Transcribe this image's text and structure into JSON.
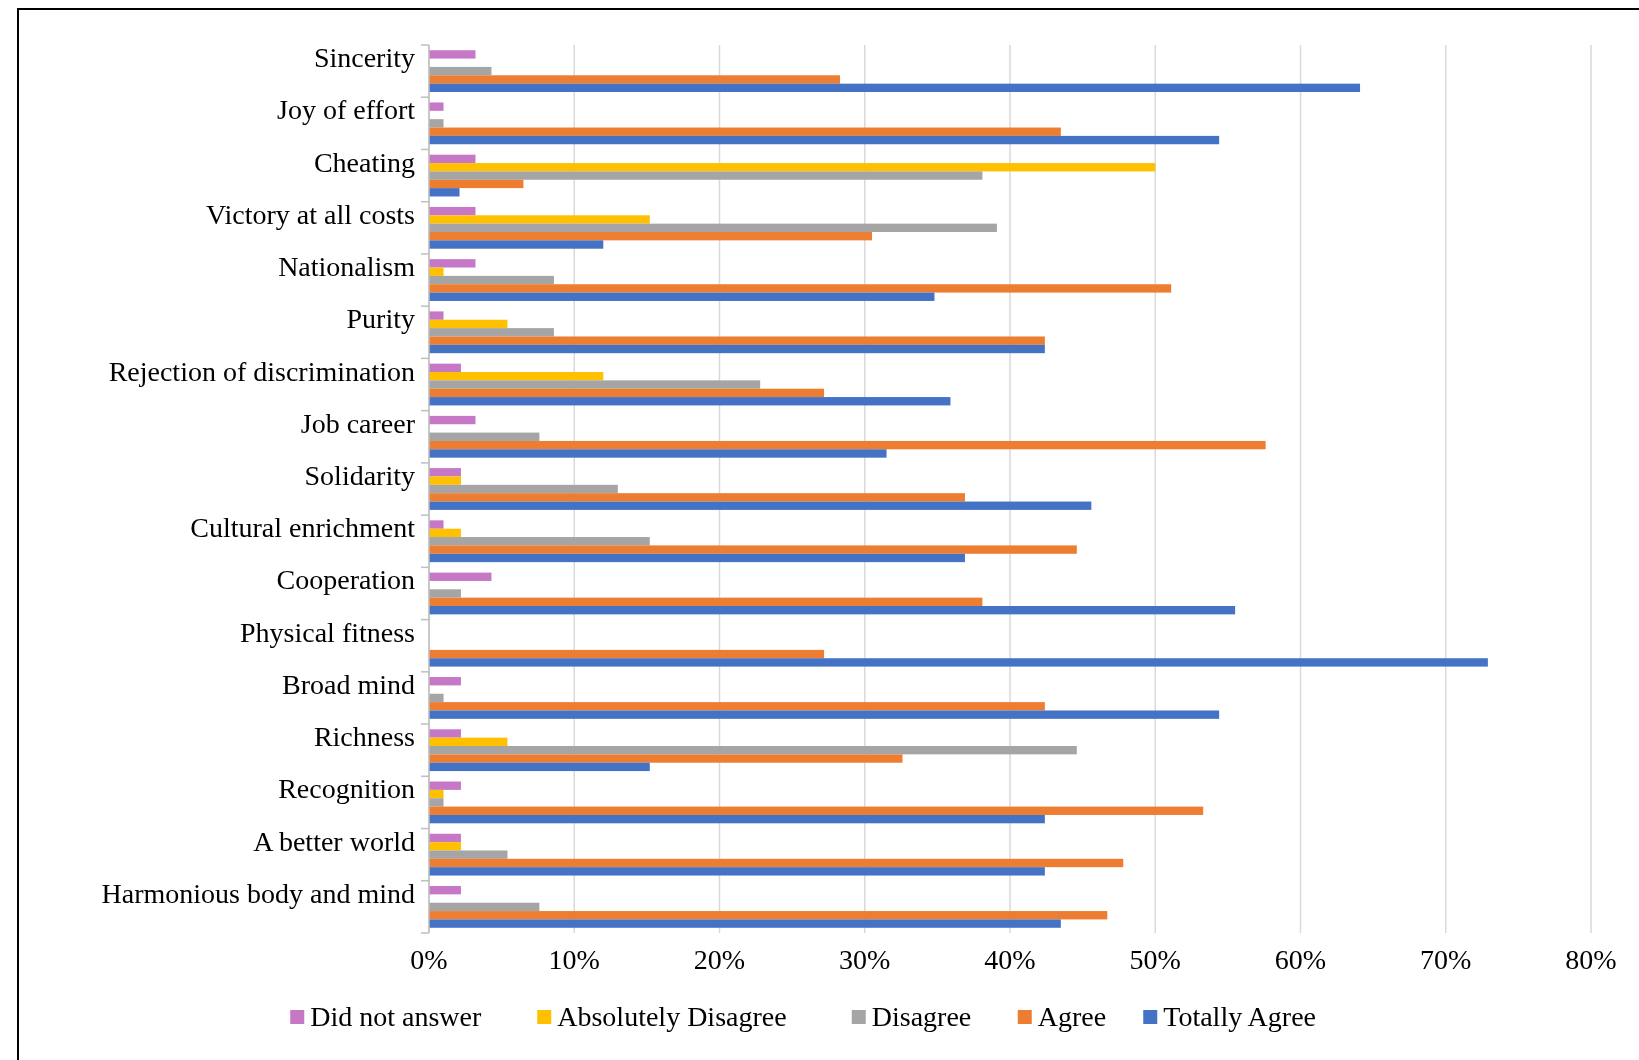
{
  "chart_data": {
    "type": "bar",
    "orientation": "horizontal",
    "categories": [
      "Sincerity",
      "Joy of effort",
      "Cheating",
      "Victory at all costs",
      "Nationalism",
      "Purity",
      "Rejection of discrimination",
      "Job career",
      "Solidarity",
      "Cultural enrichment",
      "Cooperation",
      "Physical fitness",
      "Broad mind",
      "Richness",
      "Recognition",
      "A better world",
      "Harmonious body and mind"
    ],
    "series": [
      {
        "name": "Did not answer",
        "color": "#c678c6",
        "values": [
          3.2,
          1.0,
          3.2,
          3.2,
          3.2,
          1.0,
          2.2,
          3.2,
          2.2,
          1.0,
          4.3,
          0,
          2.2,
          2.2,
          2.2,
          2.2,
          2.2
        ]
      },
      {
        "name": "Absolutely Disagree",
        "color": "#ffc000",
        "values": [
          0,
          0,
          50.0,
          15.2,
          1.0,
          5.4,
          12.0,
          0,
          2.2,
          2.2,
          0,
          0,
          0,
          5.4,
          1.0,
          2.2,
          0
        ]
      },
      {
        "name": "Disagree",
        "color": "#a5a5a5",
        "values": [
          4.3,
          1.0,
          38.1,
          39.1,
          8.6,
          8.6,
          22.8,
          7.6,
          13.0,
          15.2,
          2.2,
          0,
          1.0,
          44.6,
          1.0,
          5.4,
          7.6
        ]
      },
      {
        "name": "Agree",
        "color": "#ed7d31",
        "values": [
          28.3,
          43.5,
          6.5,
          30.5,
          51.1,
          42.4,
          27.2,
          57.6,
          36.9,
          44.6,
          38.1,
          27.2,
          42.4,
          32.6,
          53.3,
          47.8,
          46.7
        ]
      },
      {
        "name": "Totally Agree",
        "color": "#4472c4",
        "values": [
          64.1,
          54.4,
          2.1,
          12.0,
          34.8,
          42.4,
          35.9,
          31.5,
          45.6,
          36.9,
          55.5,
          72.9,
          54.4,
          15.2,
          42.4,
          42.4,
          43.5
        ]
      }
    ],
    "xlim": [
      0,
      80
    ],
    "xticks": [
      {
        "value": 0,
        "label": "0%"
      },
      {
        "value": 10,
        "label": "10%"
      },
      {
        "value": 20,
        "label": "20%"
      },
      {
        "value": 30,
        "label": "30%"
      },
      {
        "value": 40,
        "label": "40%"
      },
      {
        "value": 50,
        "label": "50%"
      },
      {
        "value": 60,
        "label": "60%"
      },
      {
        "value": 70,
        "label": "70%"
      },
      {
        "value": 80,
        "label": "80%"
      }
    ],
    "grid": "x",
    "legend": "bottom"
  }
}
